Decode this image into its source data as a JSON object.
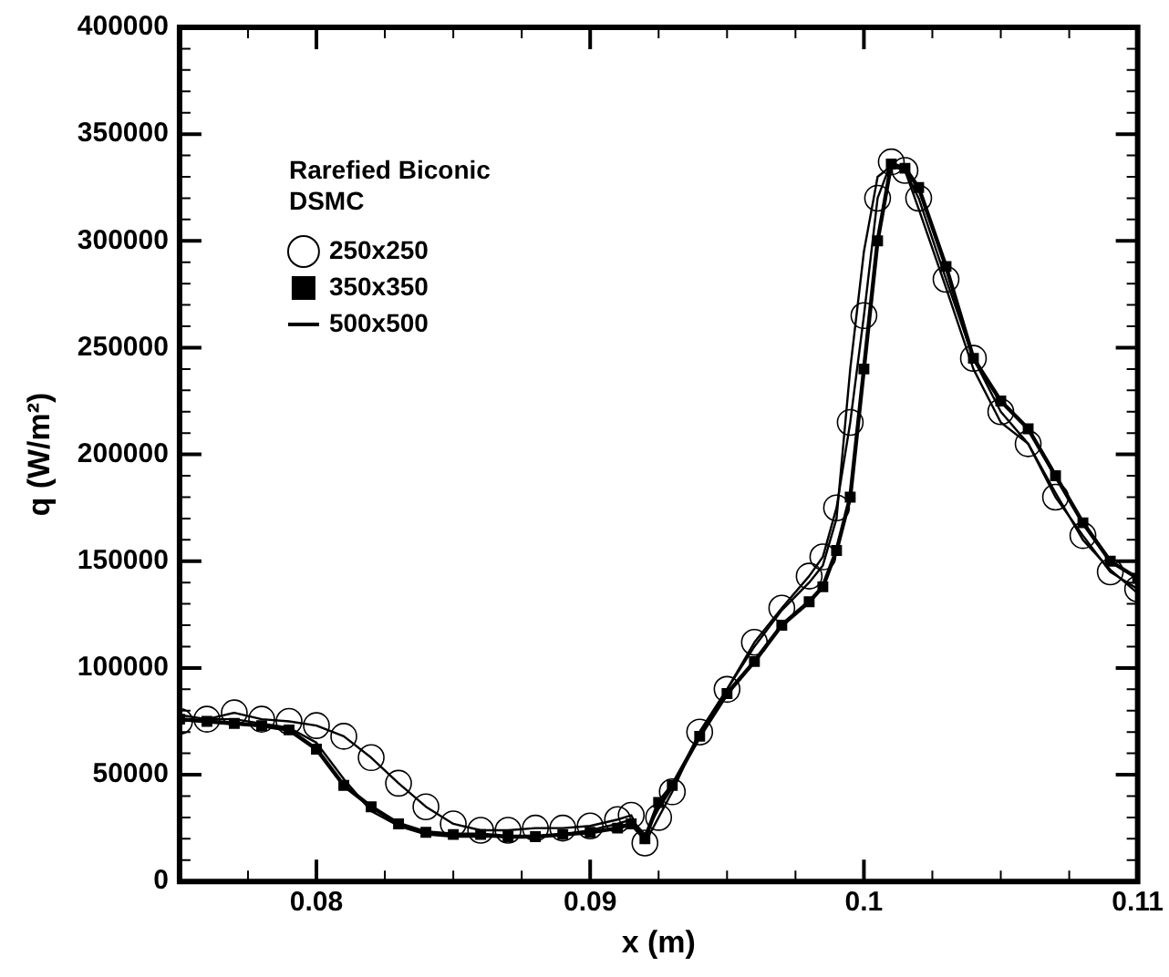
{
  "chart_data": {
    "type": "line",
    "xlabel": "x (m)",
    "ylabel": "q (W/m²)",
    "annotations": [
      "Rarefied Biconic",
      "DSMC"
    ],
    "x": [
      0.075,
      0.076,
      0.077,
      0.078,
      0.079,
      0.08,
      0.081,
      0.082,
      0.083,
      0.084,
      0.085,
      0.086,
      0.087,
      0.088,
      0.089,
      0.09,
      0.091,
      0.0915,
      0.092,
      0.0925,
      0.093,
      0.094,
      0.095,
      0.096,
      0.097,
      0.098,
      0.0985,
      0.099,
      0.0995,
      0.1,
      0.1005,
      0.101,
      0.1015,
      0.102,
      0.103,
      0.104,
      0.105,
      0.106,
      0.107,
      0.108,
      0.109,
      0.11
    ],
    "series": [
      {
        "name": "250x250",
        "color": "#000000",
        "marker": "circle",
        "values": [
          75000,
          76000,
          79000,
          76000,
          75000,
          73000,
          68000,
          58000,
          46000,
          35000,
          27000,
          24000,
          24000,
          25000,
          25000,
          26000,
          29000,
          31000,
          18000,
          30000,
          42000,
          70000,
          90000,
          112000,
          128000,
          143000,
          152000,
          175000,
          215000,
          265000,
          320000,
          337000,
          333000,
          320000,
          282000,
          245000,
          220000,
          205000,
          180000,
          162000,
          145000,
          137000
        ]
      },
      {
        "name": "350x350",
        "color": "#000000",
        "marker": "square",
        "values": [
          76000,
          75000,
          74000,
          73000,
          71000,
          62000,
          45000,
          35000,
          27000,
          23000,
          22000,
          22000,
          21000,
          21000,
          22000,
          23000,
          25000,
          27000,
          20000,
          37000,
          45000,
          68000,
          88000,
          103000,
          120000,
          131000,
          138000,
          155000,
          180000,
          240000,
          300000,
          336000,
          334000,
          325000,
          288000,
          245000,
          225000,
          212000,
          190000,
          168000,
          150000,
          142000
        ]
      },
      {
        "name": "500x500",
        "color": "#000000",
        "marker": "none",
        "values": [
          78000,
          76000,
          76000,
          74000,
          72000,
          65000,
          48000,
          33000,
          26000,
          22000,
          21000,
          21000,
          21000,
          21000,
          22000,
          24000,
          27000,
          29000,
          22000,
          34000,
          44000,
          70000,
          90000,
          110000,
          127000,
          140000,
          148000,
          170000,
          240000,
          295000,
          330000,
          335000,
          333000,
          315000,
          278000,
          240000,
          215000,
          205000,
          182000,
          160000,
          146000,
          135000
        ]
      }
    ],
    "xlim": [
      0.075,
      0.11
    ],
    "xticks": [
      {
        "value": 0.0775,
        "label": null
      },
      0.08,
      {
        "value": 0.0825,
        "label": null
      },
      {
        "value": 0.085,
        "label": null
      },
      {
        "value": 0.0875,
        "label": null
      },
      0.09,
      {
        "value": 0.0925,
        "label": null
      },
      {
        "value": 0.095,
        "label": null
      },
      {
        "value": 0.0975,
        "label": null
      },
      0.1,
      {
        "value": 0.1025,
        "label": null
      },
      {
        "value": 0.105,
        "label": null
      },
      {
        "value": 0.1075,
        "label": null
      },
      0.11
    ],
    "ylim": [
      0,
      400000
    ],
    "yticks": [
      0,
      50000,
      100000,
      150000,
      200000,
      250000,
      300000,
      350000,
      400000
    ],
    "legend": "top left",
    "grid": false,
    "line_style": "solid"
  }
}
